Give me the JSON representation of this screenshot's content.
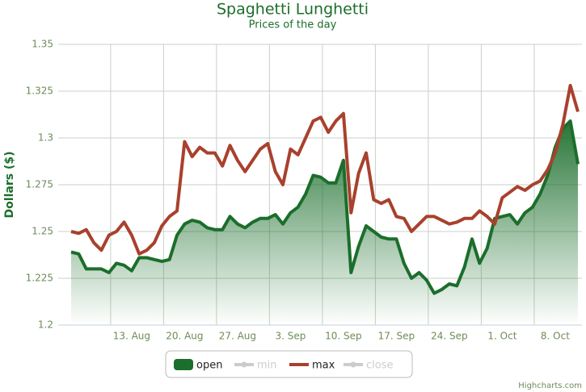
{
  "chart_data": {
    "type": "line",
    "title": "Spaghetti Lunghetti",
    "subtitle": "Prices of the day",
    "y_label": "Dollars ($)",
    "credits": "Highcharts.com",
    "categories": [
      null,
      null,
      null,
      null,
      null,
      null,
      null,
      null,
      "13. Aug",
      null,
      null,
      null,
      null,
      null,
      null,
      "20. Aug",
      null,
      null,
      null,
      null,
      null,
      null,
      "27. Aug",
      null,
      null,
      null,
      null,
      null,
      null,
      "3. Sep",
      null,
      null,
      null,
      null,
      null,
      null,
      "10. Sep",
      null,
      null,
      null,
      null,
      null,
      null,
      "17. Sep",
      null,
      null,
      null,
      null,
      null,
      null,
      "24. Sep",
      null,
      null,
      null,
      null,
      null,
      null,
      "1. Oct",
      null,
      null,
      null,
      null,
      null,
      null,
      "8. Oct",
      null,
      null,
      null
    ],
    "series": [
      {
        "name": "open",
        "type": "area",
        "color": "#1b6e2b",
        "visible": true,
        "values": [
          1.239,
          1.238,
          1.23,
          1.23,
          1.23,
          1.228,
          1.233,
          1.232,
          1.229,
          1.236,
          1.236,
          1.235,
          1.234,
          1.235,
          1.248,
          1.254,
          1.256,
          1.255,
          1.252,
          1.251,
          1.251,
          1.258,
          1.254,
          1.252,
          1.255,
          1.257,
          1.257,
          1.259,
          1.254,
          1.26,
          1.263,
          1.27,
          1.28,
          1.279,
          1.276,
          1.276,
          1.288,
          1.228,
          1.242,
          1.253,
          1.25,
          1.247,
          1.246,
          1.246,
          1.233,
          1.225,
          1.228,
          1.224,
          1.217,
          1.219,
          1.222,
          1.221,
          1.231,
          1.246,
          1.233,
          1.241,
          1.257,
          1.258,
          1.259,
          1.254,
          1.26,
          1.263,
          1.27,
          1.28,
          1.295,
          1.305,
          1.309,
          1.286
        ]
      },
      {
        "name": "min",
        "visible": false
      },
      {
        "name": "max",
        "type": "line",
        "color": "#a8412d",
        "visible": true,
        "values": [
          1.25,
          1.249,
          1.251,
          1.244,
          1.24,
          1.248,
          1.25,
          1.255,
          1.248,
          1.238,
          1.24,
          1.244,
          1.253,
          1.258,
          1.261,
          1.298,
          1.29,
          1.295,
          1.292,
          1.292,
          1.285,
          1.296,
          1.288,
          1.282,
          1.288,
          1.294,
          1.297,
          1.282,
          1.275,
          1.294,
          1.291,
          1.3,
          1.309,
          1.311,
          1.303,
          1.309,
          1.313,
          1.26,
          1.281,
          1.292,
          1.267,
          1.265,
          1.267,
          1.258,
          1.257,
          1.25,
          1.254,
          1.258,
          1.258,
          1.256,
          1.254,
          1.255,
          1.257,
          1.257,
          1.261,
          1.258,
          1.254,
          1.268,
          1.271,
          1.274,
          1.272,
          1.275,
          1.277,
          1.283,
          1.292,
          1.307,
          1.328,
          1.314
        ]
      },
      {
        "name": "close",
        "visible": false
      }
    ],
    "ylim": [
      1.2,
      1.35
    ],
    "yticks": [
      1.2,
      1.225,
      1.25,
      1.275,
      1.3,
      1.325,
      1.35
    ],
    "grid": true
  }
}
